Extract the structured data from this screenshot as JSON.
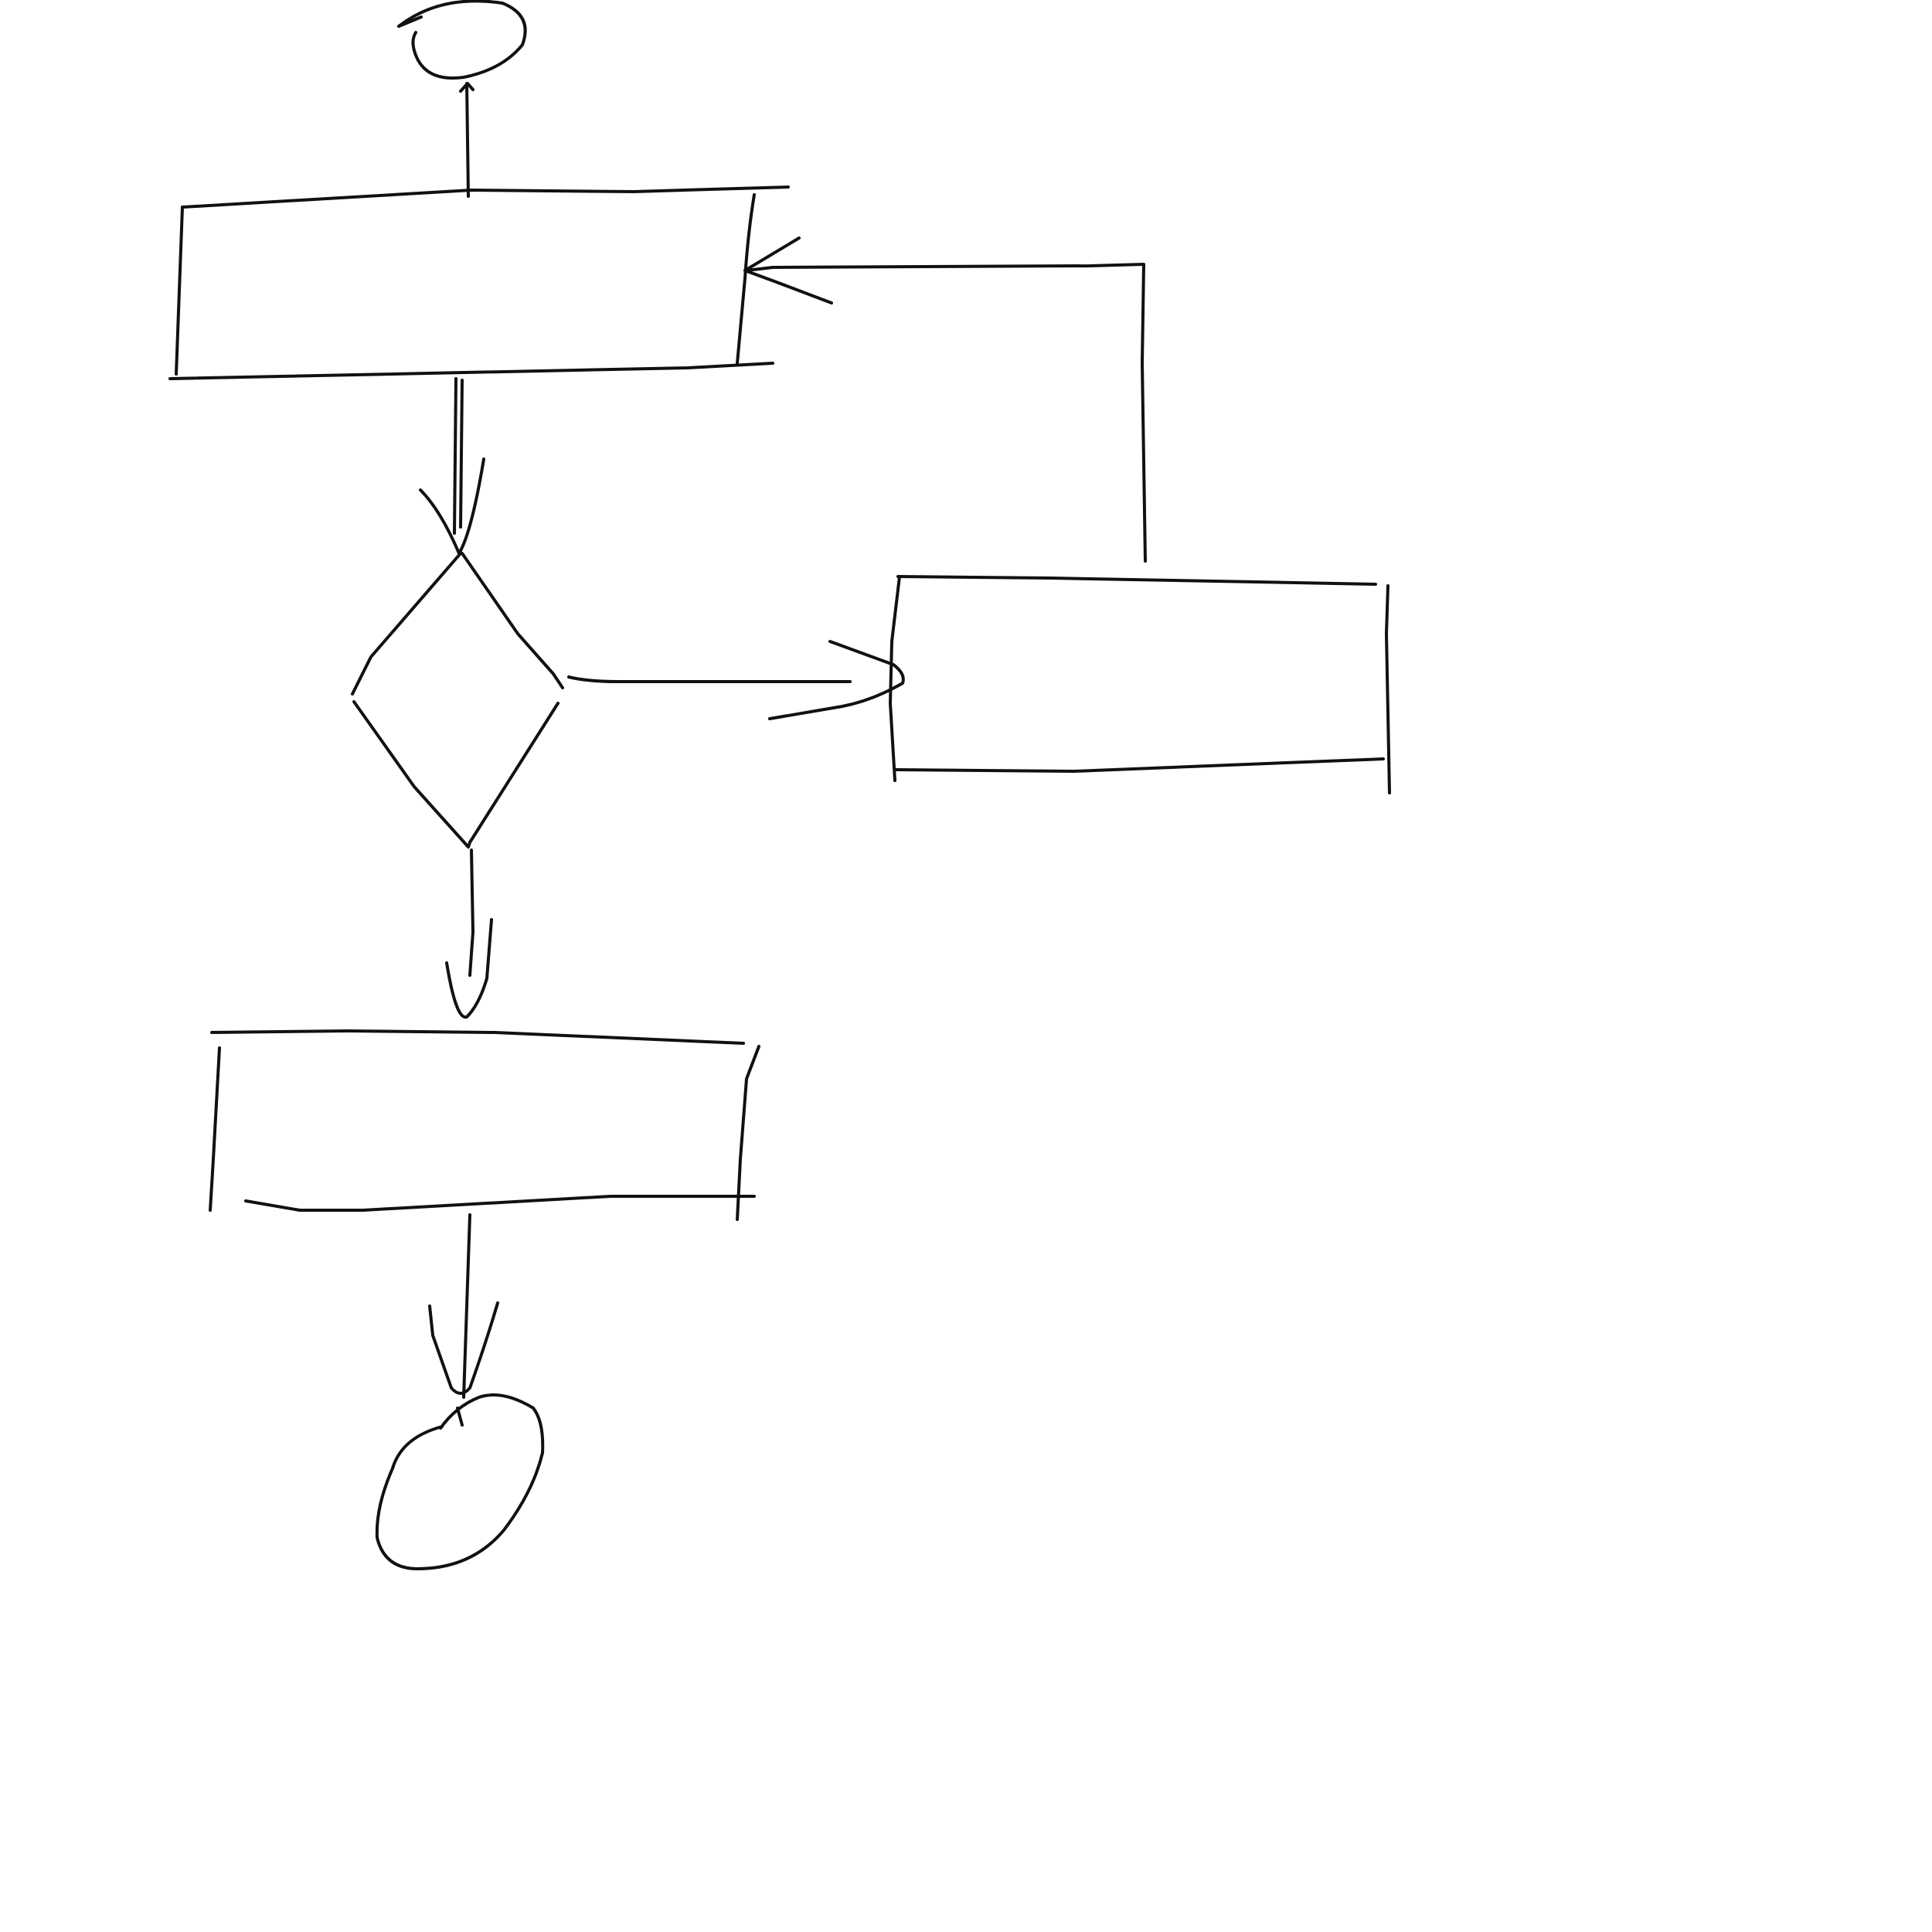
{
  "diagram": {
    "background_color": "#ffffff",
    "stroke_color": "#111111",
    "nodes": [
      {
        "id": "start",
        "shape": "oval",
        "label": ""
      },
      {
        "id": "process-1",
        "shape": "rectangle",
        "label": ""
      },
      {
        "id": "decision",
        "shape": "diamond",
        "label": ""
      },
      {
        "id": "process-side",
        "shape": "rectangle",
        "label": ""
      },
      {
        "id": "process-2",
        "shape": "rectangle",
        "label": ""
      },
      {
        "id": "end",
        "shape": "oval",
        "label": ""
      }
    ],
    "edges": [
      {
        "from": "start",
        "to": "process-1"
      },
      {
        "from": "process-1",
        "to": "decision"
      },
      {
        "from": "decision",
        "to": "process-side"
      },
      {
        "from": "process-side",
        "to": "process-1"
      },
      {
        "from": "decision",
        "to": "process-2"
      },
      {
        "from": "process-2",
        "to": "end"
      }
    ]
  }
}
